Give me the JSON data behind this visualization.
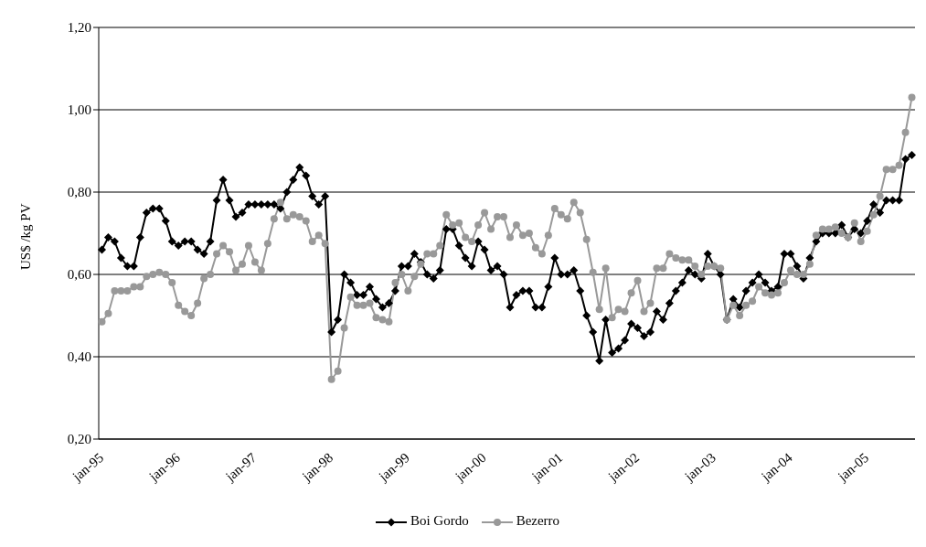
{
  "chart_data": {
    "type": "line",
    "ylabel": "US$ /kg PV",
    "categories": [
      "jan-95",
      null,
      null,
      null,
      null,
      null,
      null,
      null,
      null,
      null,
      null,
      null,
      "jan-96",
      null,
      null,
      null,
      null,
      null,
      null,
      null,
      null,
      null,
      null,
      null,
      "jan-97",
      null,
      null,
      null,
      null,
      null,
      null,
      null,
      null,
      null,
      null,
      null,
      "jan-98",
      null,
      null,
      null,
      null,
      null,
      null,
      null,
      null,
      null,
      null,
      null,
      "jan-99",
      null,
      null,
      null,
      null,
      null,
      null,
      null,
      null,
      null,
      null,
      null,
      "jan-00",
      null,
      null,
      null,
      null,
      null,
      null,
      null,
      null,
      null,
      null,
      null,
      "jan-01",
      null,
      null,
      null,
      null,
      null,
      null,
      null,
      null,
      null,
      null,
      null,
      "jan-02",
      null,
      null,
      null,
      null,
      null,
      null,
      null,
      null,
      null,
      null,
      null,
      "jan-03",
      null,
      null,
      null,
      null,
      null,
      null,
      null,
      null,
      null,
      null,
      null,
      "jan-04",
      null,
      null,
      null,
      null,
      null,
      null,
      null,
      null,
      null,
      null,
      null,
      "jan-05",
      null,
      null,
      null,
      null,
      null,
      null,
      null
    ],
    "series": [
      {
        "name": "Boi Gordo",
        "color": "#000000",
        "marker": "diamond",
        "values": [
          0.66,
          0.69,
          0.68,
          0.64,
          0.62,
          0.62,
          0.69,
          0.75,
          0.76,
          0.76,
          0.73,
          0.68,
          0.67,
          0.68,
          0.68,
          0.66,
          0.65,
          0.68,
          0.78,
          0.83,
          0.78,
          0.74,
          0.75,
          0.77,
          0.77,
          0.77,
          0.77,
          0.77,
          0.76,
          0.8,
          0.83,
          0.86,
          0.84,
          0.79,
          0.77,
          0.79,
          0.46,
          0.49,
          0.6,
          0.58,
          0.55,
          0.55,
          0.57,
          0.54,
          0.52,
          0.53,
          0.56,
          0.62,
          0.62,
          0.65,
          0.63,
          0.6,
          0.59,
          0.61,
          0.71,
          0.71,
          0.67,
          0.64,
          0.62,
          0.68,
          0.66,
          0.61,
          0.62,
          0.6,
          0.52,
          0.55,
          0.56,
          0.56,
          0.52,
          0.52,
          0.57,
          0.64,
          0.6,
          0.6,
          0.61,
          0.56,
          0.5,
          0.46,
          0.39,
          0.49,
          0.41,
          0.42,
          0.44,
          0.48,
          0.47,
          0.45,
          0.46,
          0.51,
          0.49,
          0.53,
          0.56,
          0.58,
          0.61,
          0.6,
          0.59,
          0.65,
          0.62,
          0.6,
          0.49,
          0.54,
          0.52,
          0.56,
          0.58,
          0.6,
          0.58,
          0.56,
          0.57,
          0.65,
          0.65,
          0.62,
          0.59,
          0.64,
          0.68,
          0.7,
          0.7,
          0.7,
          0.72,
          0.69,
          0.71,
          0.7,
          0.73,
          0.77,
          0.75,
          0.78,
          0.78,
          0.78,
          0.88,
          0.89
        ]
      },
      {
        "name": "Bezerro",
        "color": "#999999",
        "marker": "circle",
        "values": [
          0.485,
          0.505,
          0.56,
          0.56,
          0.56,
          0.57,
          0.57,
          0.595,
          0.6,
          0.605,
          0.6,
          0.58,
          0.525,
          0.51,
          0.5,
          0.53,
          0.59,
          0.6,
          0.65,
          0.67,
          0.655,
          0.61,
          0.625,
          0.67,
          0.63,
          0.61,
          0.675,
          0.735,
          0.775,
          0.735,
          0.745,
          0.74,
          0.73,
          0.68,
          0.695,
          0.675,
          0.345,
          0.365,
          0.47,
          0.545,
          0.525,
          0.525,
          0.53,
          0.495,
          0.49,
          0.485,
          0.58,
          0.6,
          0.56,
          0.595,
          0.625,
          0.65,
          0.65,
          0.67,
          0.745,
          0.72,
          0.725,
          0.69,
          0.68,
          0.72,
          0.75,
          0.71,
          0.74,
          0.74,
          0.69,
          0.72,
          0.695,
          0.7,
          0.665,
          0.65,
          0.695,
          0.76,
          0.745,
          0.735,
          0.775,
          0.75,
          0.685,
          0.605,
          0.515,
          0.615,
          0.495,
          0.515,
          0.51,
          0.555,
          0.585,
          0.51,
          0.53,
          0.615,
          0.615,
          0.65,
          0.64,
          0.635,
          0.635,
          0.62,
          0.6,
          0.62,
          0.62,
          0.615,
          0.49,
          0.525,
          0.5,
          0.525,
          0.535,
          0.57,
          0.555,
          0.55,
          0.555,
          0.58,
          0.61,
          0.6,
          0.6,
          0.625,
          0.695,
          0.71,
          0.71,
          0.715,
          0.7,
          0.69,
          0.725,
          0.68,
          0.705,
          0.745,
          0.79,
          0.855,
          0.855,
          0.865,
          0.945,
          1.03
        ]
      }
    ],
    "ylim": [
      0.2,
      1.2
    ],
    "yticks": [
      {
        "value": 0.2,
        "label": "0,20"
      },
      {
        "value": 0.4,
        "label": "0,40"
      },
      {
        "value": 0.6,
        "label": "0,60"
      },
      {
        "value": 0.8,
        "label": "0,80"
      },
      {
        "value": 1.0,
        "label": "1,00"
      },
      {
        "value": 1.2,
        "label": "1,20"
      }
    ],
    "grid": "y",
    "legend": "bottom",
    "line_style": "solid"
  }
}
